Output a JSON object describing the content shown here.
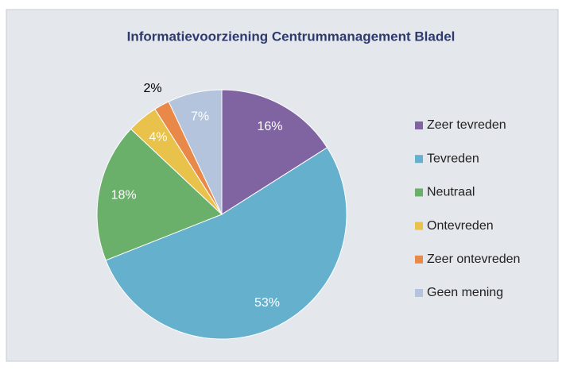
{
  "chart_data": {
    "type": "pie",
    "title": "Informatievoorziening Centrummanagement Bladel",
    "categories": [
      "Zeer tevreden",
      "Tevreden",
      "Neutraal",
      "Ontevreden",
      "Zeer ontevreden",
      "Geen mening"
    ],
    "values": [
      16,
      53,
      18,
      4,
      2,
      7
    ],
    "value_labels": [
      "16%",
      "53%",
      "18%",
      "4%",
      "2%",
      "7%"
    ],
    "colors": [
      "#8064a2",
      "#65b0cc",
      "#6aaf6a",
      "#e8c24a",
      "#e8894a",
      "#b3c4dc"
    ],
    "legend": "right"
  }
}
